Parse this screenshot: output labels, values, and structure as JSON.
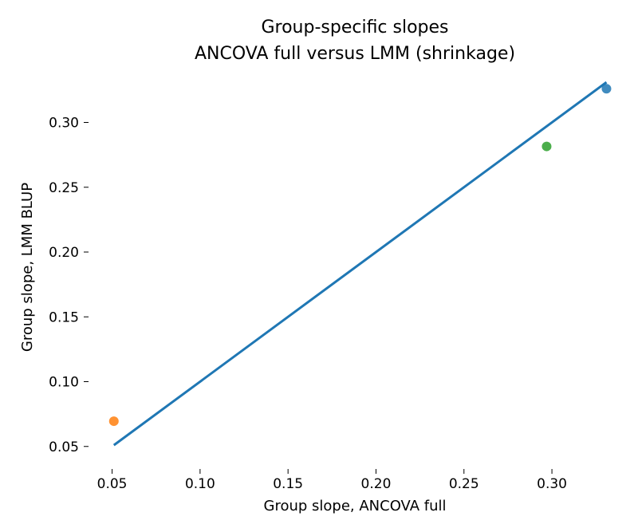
{
  "chart_data": {
    "type": "scatter",
    "title_lines": [
      "Group-specific slopes",
      "ANCOVA full versus LMM (shrinkage)"
    ],
    "xlabel": "Group slope, ANCOVA full",
    "ylabel": "Group slope, LMM BLUP",
    "xlim": [
      0.0375,
      0.3385
    ],
    "ylim": [
      0.04,
      0.336
    ],
    "x_ticks": [
      0.05,
      0.1,
      0.15,
      0.2,
      0.25,
      0.3
    ],
    "x_tick_labels": [
      "0.05",
      "0.10",
      "0.15",
      "0.20",
      "0.25",
      "0.30"
    ],
    "y_ticks": [
      0.05,
      0.1,
      0.15,
      0.2,
      0.25,
      0.3
    ],
    "y_tick_labels": [
      "0.05",
      "0.10",
      "0.15",
      "0.20",
      "0.25",
      "0.30"
    ],
    "grid": false,
    "points": [
      {
        "x": 0.051,
        "y": 0.0695,
        "color": "#ff7f0e"
      },
      {
        "x": 0.297,
        "y": 0.2815,
        "color": "#2ca02c"
      },
      {
        "x": 0.331,
        "y": 0.326,
        "color": "#1f77b4"
      }
    ],
    "reference_line": {
      "x": [
        0.051,
        0.331
      ],
      "y": [
        0.051,
        0.331
      ],
      "color": "#1f77b4"
    }
  }
}
